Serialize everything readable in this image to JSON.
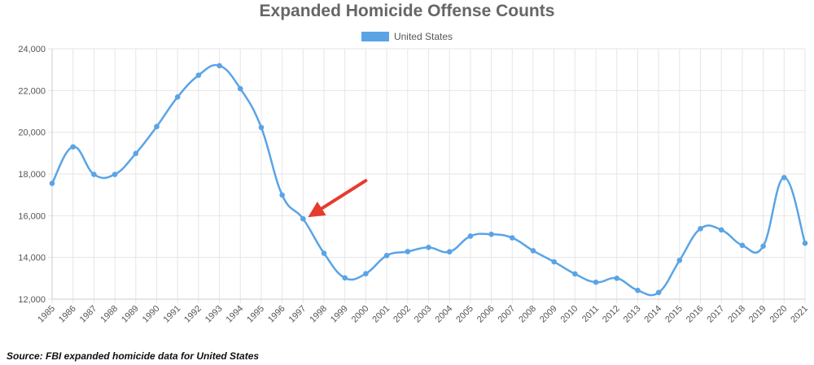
{
  "chart_data": {
    "type": "line",
    "title": "Expanded Homicide Offense Counts",
    "source": "Source: FBI expanded homicide data for United States",
    "legend_position": "top",
    "grid": true,
    "ylim": [
      12000,
      24000
    ],
    "y_ticks": [
      "12,000",
      "14,000",
      "16,000",
      "18,000",
      "20,000",
      "22,000",
      "24,000"
    ],
    "y_tick_values": [
      12000,
      14000,
      16000,
      18000,
      20000,
      22000,
      24000
    ],
    "categories": [
      "1985",
      "1986",
      "1987",
      "1988",
      "1989",
      "1990",
      "1991",
      "1992",
      "1993",
      "1994",
      "1995",
      "1996",
      "1997",
      "1998",
      "1999",
      "2000",
      "2001",
      "2002",
      "2003",
      "2004",
      "2005",
      "2006",
      "2007",
      "2008",
      "2009",
      "2010",
      "2011",
      "2012",
      "2013",
      "2014",
      "2015",
      "2016",
      "2017",
      "2018",
      "2019",
      "2020",
      "2021"
    ],
    "series": [
      {
        "name": "United States",
        "color": "#5aa4e6",
        "values": [
          17550,
          19300,
          17980,
          17980,
          18980,
          20270,
          21690,
          22730,
          23190,
          22090,
          20230,
          16990,
          15850,
          14200,
          13020,
          13220,
          14090,
          14280,
          14480,
          14270,
          15020,
          15110,
          14940,
          14320,
          13790,
          13210,
          12810,
          13000,
          12420,
          12320,
          13860,
          15380,
          15320,
          14580,
          14540,
          17830,
          14680
        ]
      }
    ],
    "annotation": {
      "type": "arrow",
      "color": "#e63b2e",
      "target_category": "1997"
    }
  }
}
